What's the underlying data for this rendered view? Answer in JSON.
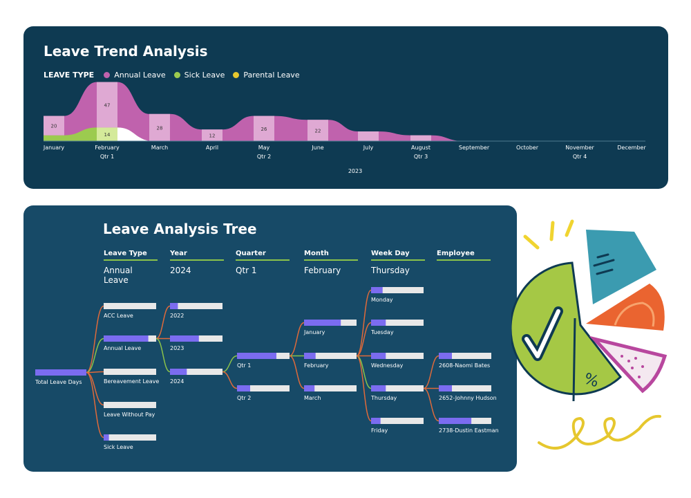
{
  "trend": {
    "title": "Leave Trend Analysis",
    "legend_label": "LEAVE TYPE",
    "legend": [
      {
        "name": "Annual Leave",
        "color": "#c062ad"
      },
      {
        "name": "Sick Leave",
        "color": "#9ccb4f"
      },
      {
        "name": "Parental Leave",
        "color": "#e6c72e"
      }
    ],
    "year_label": "2023"
  },
  "chart_data": {
    "type": "area",
    "x": [
      "January",
      "February",
      "March",
      "April",
      "May",
      "June",
      "July",
      "August",
      "September",
      "October",
      "November",
      "December"
    ],
    "quarter_labels": [
      {
        "month": "February",
        "label": "Qtr 1"
      },
      {
        "month": "May",
        "label": "Qtr 2"
      },
      {
        "month": "August",
        "label": "Qtr 3"
      },
      {
        "month": "November",
        "label": "Qtr 4"
      }
    ],
    "series": [
      {
        "name": "Annual Leave",
        "values": [
          20,
          47,
          28,
          12,
          26,
          22,
          10,
          6,
          0,
          0,
          0,
          0
        ]
      },
      {
        "name": "Sick Leave",
        "values": [
          6,
          14,
          0,
          0,
          0,
          0,
          0,
          0,
          0,
          0,
          0,
          0
        ]
      },
      {
        "name": "Parental Leave",
        "values": [
          0,
          0,
          0,
          0,
          0,
          0,
          0,
          0,
          0,
          0,
          0,
          0
        ]
      }
    ],
    "data_labels": [
      {
        "series": "Annual Leave",
        "month": "January",
        "text": "20"
      },
      {
        "series": "Annual Leave",
        "month": "February",
        "text": "47"
      },
      {
        "series": "Sick Leave",
        "month": "February",
        "text": "14"
      },
      {
        "series": "Annual Leave",
        "month": "March",
        "text": "28"
      },
      {
        "series": "Annual Leave",
        "month": "April",
        "text": "12"
      },
      {
        "series": "Annual Leave",
        "month": "May",
        "text": "26"
      },
      {
        "series": "Annual Leave",
        "month": "June",
        "text": "22"
      }
    ]
  },
  "tree": {
    "title": "Leave Analysis Tree",
    "headers": [
      {
        "label": "Leave Type",
        "value": "Annual Leave"
      },
      {
        "label": "Year",
        "value": "2024"
      },
      {
        "label": "Quarter",
        "value": "Qtr 1"
      },
      {
        "label": "Month",
        "value": "February"
      },
      {
        "label": "Week Day",
        "value": "Thursday"
      },
      {
        "label": "Employee",
        "value": ""
      }
    ],
    "root": {
      "label": "Total Leave Days",
      "fill": 1.0
    },
    "leave_types": [
      {
        "label": "ACC Leave",
        "fill": 0.0
      },
      {
        "label": "Annual Leave",
        "fill": 0.85,
        "expanded": true
      },
      {
        "label": "Bereavement Leave",
        "fill": 0.0
      },
      {
        "label": "Leave Without Pay",
        "fill": 0.0
      },
      {
        "label": "Sick Leave",
        "fill": 0.1
      }
    ],
    "years": [
      {
        "label": "2022",
        "fill": 0.15
      },
      {
        "label": "2023",
        "fill": 0.55
      },
      {
        "label": "2024",
        "fill": 0.32,
        "expanded": true
      }
    ],
    "quarters": [
      {
        "label": "Qtr 1",
        "fill": 0.75,
        "expanded": true
      },
      {
        "label": "Qtr 2",
        "fill": 0.25
      }
    ],
    "months": [
      {
        "label": "January",
        "fill": 0.7
      },
      {
        "label": "February",
        "fill": 0.22,
        "expanded": true
      },
      {
        "label": "March",
        "fill": 0.2
      }
    ],
    "weekdays": [
      {
        "label": "Monday",
        "fill": 0.22
      },
      {
        "label": "Tuesday",
        "fill": 0.28
      },
      {
        "label": "Wednesday",
        "fill": 0.28
      },
      {
        "label": "Thursday",
        "fill": 0.28,
        "expanded": true
      },
      {
        "label": "Friday",
        "fill": 0.18
      }
    ],
    "employees": [
      {
        "label": "2608-Naomi Bates",
        "fill": 0.25
      },
      {
        "label": "2652-Johnny Hudson",
        "fill": 0.25
      },
      {
        "label": "2738-Dustin Eastman",
        "fill": 0.62
      }
    ],
    "colors": {
      "bar_fill": "#7b6cf0",
      "bar_track": "#e8e8e8",
      "link_active": "#8bc34a",
      "link_other": "#e06a3a"
    }
  }
}
